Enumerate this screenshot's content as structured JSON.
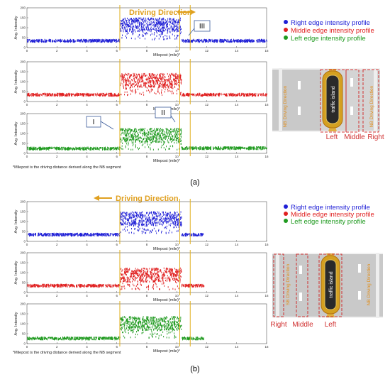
{
  "chart_data": [
    {
      "type": "scatter",
      "panel": "(a)",
      "direction_label": "Driving Direction",
      "direction": "right",
      "legend": [
        "Right edge intensity profile",
        "Middle edge intensity profile",
        "Left edge intensity profile"
      ],
      "colors": [
        "#1f1fd6",
        "#e02020",
        "#1f9a1f"
      ],
      "xlabel": "Milepost (mile)*",
      "ylabel": "Avg. Intensity",
      "xlim": [
        0,
        16
      ],
      "xticks": [
        0,
        2,
        4,
        6,
        8,
        10,
        12,
        14,
        16
      ],
      "ylim": [
        0,
        200
      ],
      "yticks": [
        0,
        50,
        100,
        150,
        200
      ],
      "series": [
        {
          "name": "Right edge intensity profile",
          "segments": [
            {
              "x": [
                0,
                6.2
              ],
              "y": 38
            },
            {
              "x": [
                6.2,
                10.3
              ],
              "y": 118
            },
            {
              "x": [
                10.3,
                16
              ],
              "y": 38
            }
          ]
        },
        {
          "name": "Middle edge intensity profile",
          "segments": [
            {
              "x": [
                0,
                6.2
              ],
              "y": 38
            },
            {
              "x": [
                6.2,
                10.3
              ],
              "y": 110
            },
            {
              "x": [
                10.3,
                16
              ],
              "y": 38
            }
          ]
        },
        {
          "name": "Left edge intensity profile",
          "segments": [
            {
              "x": [
                0,
                6.2
              ],
              "y": 28
            },
            {
              "x": [
                6.2,
                10.3
              ],
              "y": 95
            },
            {
              "x": [
                10.3,
                16
              ],
              "y": 30
            }
          ]
        }
      ],
      "vlines": [
        6.2,
        10.2,
        10.9
      ],
      "annotations": [
        "I",
        "II",
        "III"
      ],
      "footnote": "*Milepost is the driving distance derived along the NB segment",
      "caption": "(a)",
      "diagram": {
        "island_label": "traffic island",
        "direction_text": "NB Driving Direction",
        "labels": [
          "Left",
          "Middle",
          "Right"
        ]
      }
    },
    {
      "type": "scatter",
      "panel": "(b)",
      "direction_label": "Driving Direction",
      "direction": "left",
      "legend": [
        "Right edge intensity profile",
        "Middle edge intensity profile",
        "Left edge intensity profile"
      ],
      "colors": [
        "#1f1fd6",
        "#e02020",
        "#1f9a1f"
      ],
      "xlabel": "Milepost (mile)*",
      "ylabel": "Avg. Intensity",
      "xlim": [
        0,
        16
      ],
      "xticks": [
        0,
        2,
        4,
        6,
        8,
        10,
        12,
        14,
        16
      ],
      "ylim": [
        0,
        200
      ],
      "yticks": [
        0,
        50,
        100,
        150,
        200
      ],
      "series": [
        {
          "name": "Right edge intensity profile",
          "segments": [
            {
              "x": [
                0,
                6.2
              ],
              "y": 38
            },
            {
              "x": [
                6.2,
                10.3
              ],
              "y": 118
            },
            {
              "x": [
                10.3,
                11.8
              ],
              "y": 38
            }
          ]
        },
        {
          "name": "Middle edge intensity profile",
          "segments": [
            {
              "x": [
                0,
                6.2
              ],
              "y": 38
            },
            {
              "x": [
                6.2,
                10.3
              ],
              "y": 92
            },
            {
              "x": [
                10.3,
                11.8
              ],
              "y": 38
            }
          ]
        },
        {
          "name": "Left edge intensity profile",
          "segments": [
            {
              "x": [
                0,
                6.2
              ],
              "y": 30
            },
            {
              "x": [
                6.2,
                10.3
              ],
              "y": 105
            },
            {
              "x": [
                10.3,
                11.8
              ],
              "y": 30
            }
          ]
        }
      ],
      "vlines": [
        6.2,
        10.2,
        10.9
      ],
      "footnote": "*Milepost is the driving distance derived along the NB segment",
      "caption": "(b)",
      "diagram": {
        "island_label": "traffic island",
        "direction_text": "SB Driving Direction",
        "direction_text_2": "NB Driving Direction",
        "labels": [
          "Right",
          "Middle",
          "Left"
        ]
      }
    }
  ]
}
